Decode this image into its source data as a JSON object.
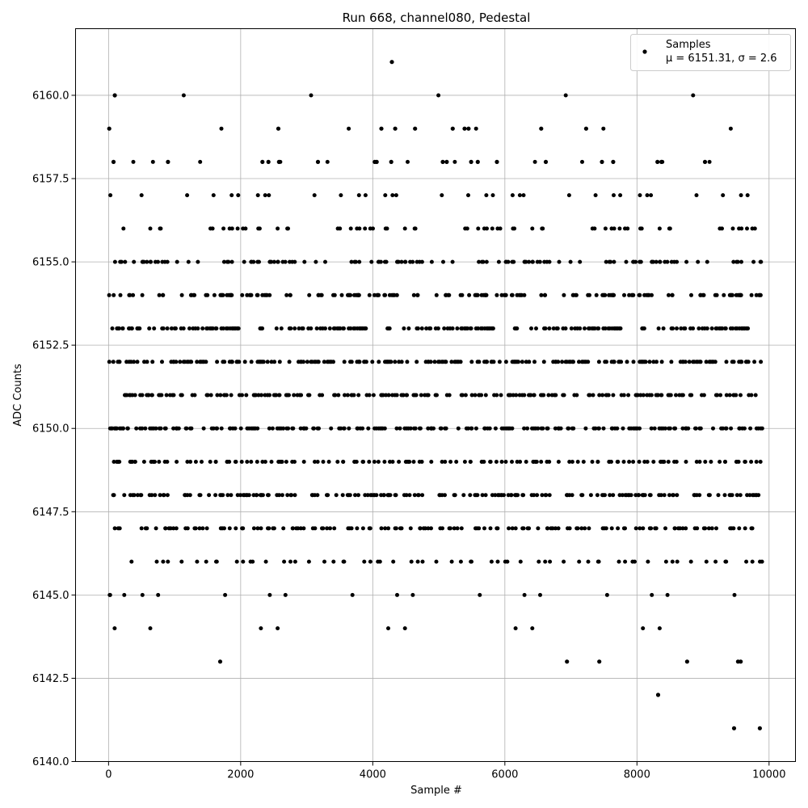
{
  "chart_data": {
    "type": "scatter",
    "title": "Run 668, channel080, Pedestal",
    "xlabel": "Sample #",
    "ylabel": "ADC Counts",
    "xlim": [
      -500,
      10400
    ],
    "ylim": [
      6140.0,
      6162.0
    ],
    "x_ticks": [
      0,
      2000,
      4000,
      6000,
      8000,
      10000
    ],
    "x_tick_labels": [
      "0",
      "2000",
      "4000",
      "6000",
      "8000",
      "10000"
    ],
    "y_ticks": [
      6140.0,
      6142.5,
      6145.0,
      6147.5,
      6150.0,
      6152.5,
      6155.0,
      6157.5,
      6160.0
    ],
    "y_tick_labels": [
      "6140.0",
      "6142.5",
      "6145.0",
      "6147.5",
      "6150.0",
      "6152.5",
      "6155.0",
      "6157.5",
      "6160.0"
    ],
    "grid": true,
    "legend_position": "top-right",
    "marker_color": "#000000",
    "series": [
      {
        "name": "Samples",
        "annotation": "μ = 6151.31, σ = 2.6",
        "x_range": [
          0,
          9900
        ],
        "count": 9900,
        "level_density": {
          "6141": 0.0004,
          "6142": 0.0002,
          "6143": 0.0008,
          "6144": 0.006,
          "6145": 0.015,
          "6146": 0.045,
          "6147": 0.08,
          "6148": 0.12,
          "6149": 0.1,
          "6150": 0.14,
          "6151": 0.15,
          "6152": 0.15,
          "6153": 0.13,
          "6154": 0.1,
          "6155": 0.07,
          "6156": 0.045,
          "6157": 0.02,
          "6158": 0.004,
          "6159": 0.002,
          "6160": 0.0002,
          "6161": 0.0001
        },
        "outliers": [
          {
            "x": 10,
            "y": 6159
          },
          {
            "x": 95,
            "y": 6160
          },
          {
            "x": 75,
            "y": 6158
          },
          {
            "x": 900,
            "y": 6158
          },
          {
            "x": 2330,
            "y": 6158
          },
          {
            "x": 2420,
            "y": 6158
          },
          {
            "x": 2570,
            "y": 6159
          },
          {
            "x": 2580,
            "y": 6158
          },
          {
            "x": 3170,
            "y": 6158
          },
          {
            "x": 4030,
            "y": 6158
          },
          {
            "x": 4060,
            "y": 6158
          },
          {
            "x": 4130,
            "y": 6159
          },
          {
            "x": 4290,
            "y": 6161
          },
          {
            "x": 4280,
            "y": 6158
          },
          {
            "x": 4340,
            "y": 6159
          },
          {
            "x": 4640,
            "y": 6159
          },
          {
            "x": 5060,
            "y": 6158
          },
          {
            "x": 5120,
            "y": 6158
          },
          {
            "x": 5210,
            "y": 6159
          },
          {
            "x": 5390,
            "y": 6159
          },
          {
            "x": 5450,
            "y": 6159
          },
          {
            "x": 5490,
            "y": 6158
          },
          {
            "x": 5590,
            "y": 6158
          },
          {
            "x": 5880,
            "y": 6158
          },
          {
            "x": 6550,
            "y": 6159
          },
          {
            "x": 6620,
            "y": 6158
          },
          {
            "x": 7230,
            "y": 6159
          },
          {
            "x": 7470,
            "y": 6158
          },
          {
            "x": 7640,
            "y": 6158
          },
          {
            "x": 8310,
            "y": 6158
          },
          {
            "x": 8370,
            "y": 6158
          },
          {
            "x": 9030,
            "y": 6158
          },
          {
            "x": 1690,
            "y": 6143
          },
          {
            "x": 6940,
            "y": 6143
          },
          {
            "x": 7430,
            "y": 6143
          },
          {
            "x": 8760,
            "y": 6143
          },
          {
            "x": 9530,
            "y": 6143
          },
          {
            "x": 9570,
            "y": 6143
          },
          {
            "x": 8320,
            "y": 6142
          },
          {
            "x": 9470,
            "y": 6141
          },
          {
            "x": 9860,
            "y": 6141
          }
        ]
      }
    ]
  }
}
